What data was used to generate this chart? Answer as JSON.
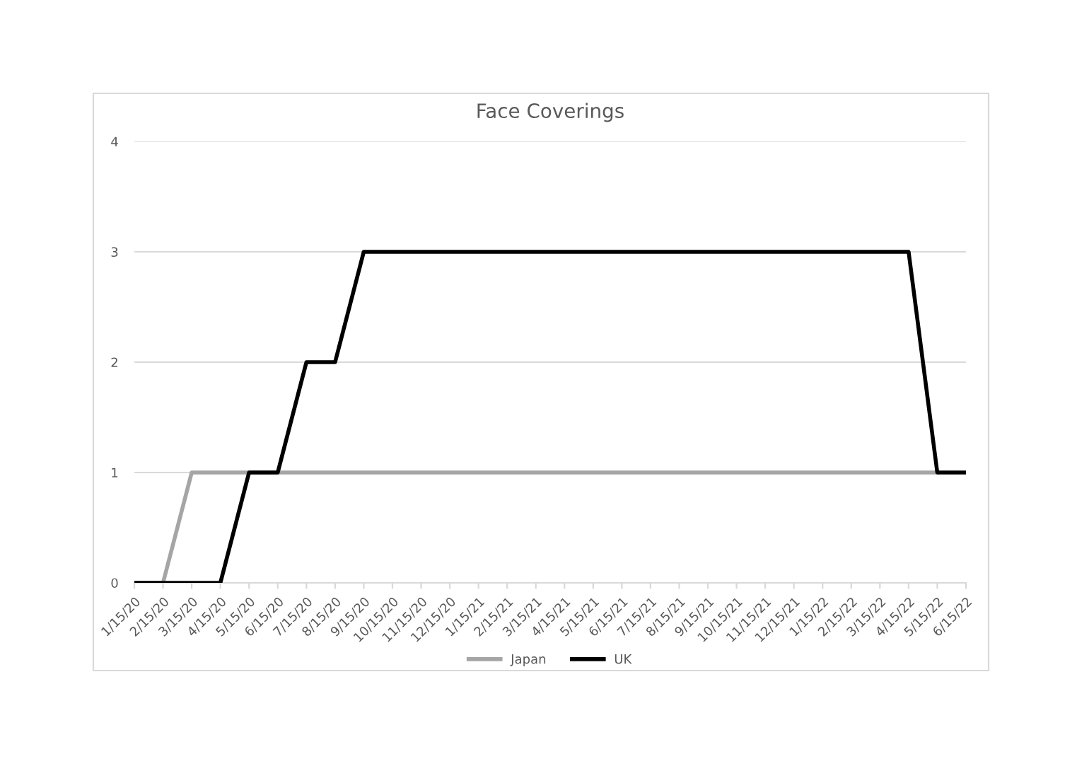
{
  "chart_data": {
    "type": "line",
    "title": "Face Coverings",
    "categories": [
      "1/15/20",
      "2/15/20",
      "3/15/20",
      "4/15/20",
      "5/15/20",
      "6/15/20",
      "7/15/20",
      "8/15/20",
      "9/15/20",
      "10/15/20",
      "11/15/20",
      "12/15/20",
      "1/15/21",
      "2/15/21",
      "3/15/21",
      "4/15/21",
      "5/15/21",
      "6/15/21",
      "7/15/21",
      "8/15/21",
      "9/15/21",
      "10/15/21",
      "11/15/21",
      "12/15/21",
      "1/15/22",
      "2/15/22",
      "3/15/22",
      "4/15/22",
      "5/15/22",
      "6/15/22"
    ],
    "series": [
      {
        "name": "Japan",
        "color": "#a5a5a5",
        "values": [
          0,
          0,
          1,
          1,
          1,
          1,
          1,
          1,
          1,
          1,
          1,
          1,
          1,
          1,
          1,
          1,
          1,
          1,
          1,
          1,
          1,
          1,
          1,
          1,
          1,
          1,
          1,
          1,
          1,
          null
        ]
      },
      {
        "name": "UK",
        "color": "#000000",
        "values": [
          0,
          0,
          0,
          0,
          1,
          1,
          2,
          2,
          3,
          3,
          3,
          3,
          3,
          3,
          3,
          3,
          3,
          3,
          3,
          3,
          3,
          3,
          3,
          3,
          3,
          3,
          3,
          3,
          1,
          1
        ]
      }
    ],
    "ylim": [
      0,
      4
    ],
    "yticks": [
      0,
      1,
      2,
      3,
      4
    ],
    "grid": "y",
    "legend": "bottom",
    "marker": "none",
    "line_style": "solid"
  }
}
